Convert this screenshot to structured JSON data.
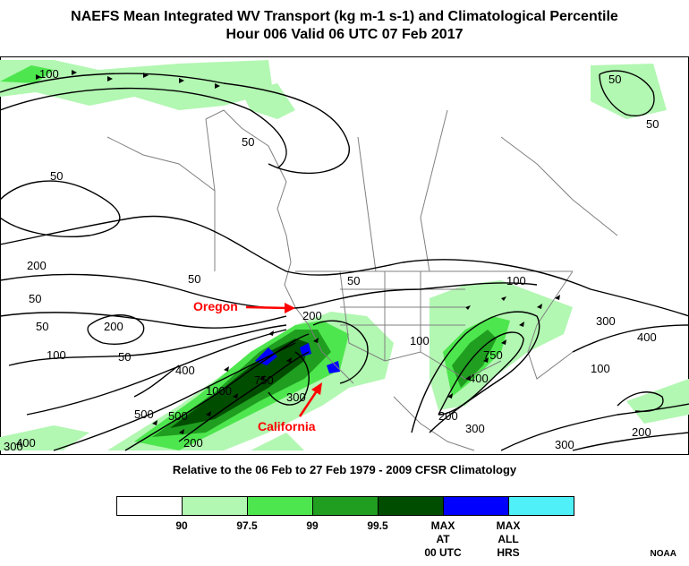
{
  "title_line1": "NAEFS Mean Integrated WV Transport (kg m-1 s-1) and Climatological Percentile",
  "title_line2": "Hour 006 Valid 06 UTC 07 Feb 2017",
  "caption": "Relative to the 06 Feb to 27 Feb 1979 - 2009 CFSR Climatology",
  "annotations": {
    "oregon": "Oregon",
    "california": "California"
  },
  "contour_labels": [
    "100",
    "50",
    "50",
    "200",
    "50",
    "50",
    "200",
    "100",
    "50",
    "400",
    "1000",
    "750",
    "500",
    "300",
    "200",
    "400",
    "300",
    "500",
    "50",
    "100",
    "50",
    "200",
    "750",
    "400",
    "200",
    "300",
    "100",
    "300",
    "400",
    "100",
    "200",
    "300",
    "50",
    "50"
  ],
  "legend": {
    "swatch_colors": [
      "#ffffff",
      "#b2f7b2",
      "#4ee64e",
      "#1f9e1f",
      "#004d00",
      "#0000ff",
      "#50f0f8"
    ],
    "labels": [
      "90",
      "97.5",
      "99",
      "99.5",
      "MAX\nAT\n00 UTC",
      "MAX\nALL\nHRS"
    ]
  },
  "colors": {
    "annotation": "#ff0000",
    "ocean_line": "#808080",
    "contour": "#000000"
  },
  "credit": "NOAA"
}
